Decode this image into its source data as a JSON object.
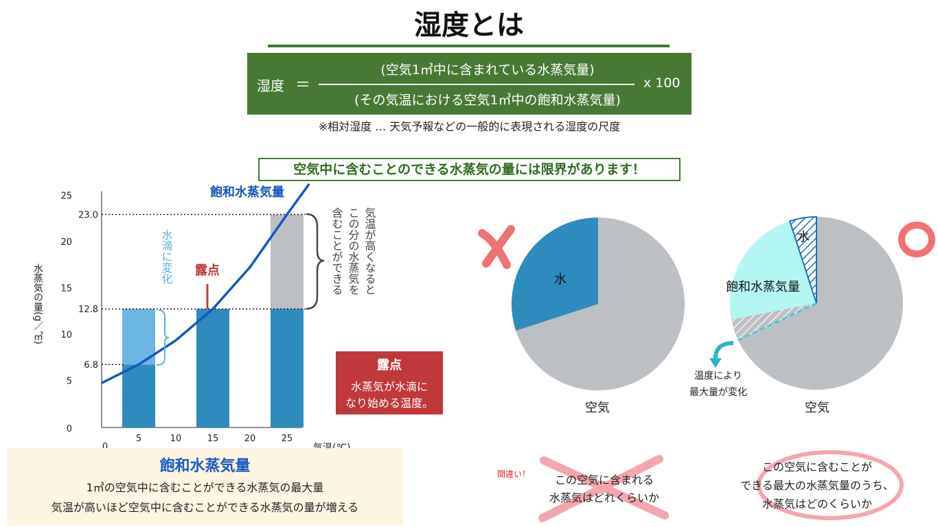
{
  "title": "湿度とは",
  "formula": {
    "lhs": "湿度",
    "eq": "＝",
    "numerator": "(空気1㎥中に含まれている水蒸気量)",
    "denominator": "(その気温における空気1㎥中の飽和水蒸気量)",
    "multiplier": "x 100",
    "note": "※相対湿度 … 天気予報などの一般的に表現される湿度の尺度"
  },
  "banner": "空気中に含むことのできる水蒸気の量には限界があります！",
  "colors": {
    "green": "#467a32",
    "blue_bar": "#2e8bbd",
    "light_blue_bar": "#6cb6e3",
    "gray_bar": "#bcbfc4",
    "curve": "#1456c0",
    "red": "#c0383a",
    "cyan": "#b3f7f5"
  },
  "chart_data": {
    "type": "bar",
    "x_ticks": [
      "0",
      "5",
      "10",
      "15",
      "20",
      "25"
    ],
    "y_ticks": [
      "0",
      "5",
      "10",
      "15",
      "20",
      "25"
    ],
    "xlabel": "気温(℃)",
    "ylabel": "水蒸気の量(g／㎥)",
    "xlim": [
      0,
      30
    ],
    "ylim": [
      0,
      25
    ],
    "bars": [
      {
        "x": 5,
        "water_vapor": 6.8,
        "condensed": 6.0
      },
      {
        "x": 15,
        "water_vapor": 12.8,
        "condensed": 0
      },
      {
        "x": 25,
        "water_vapor": 12.8,
        "extra_capacity": 10.2
      }
    ],
    "curve_points": [
      [
        0,
        4.8
      ],
      [
        5,
        6.8
      ],
      [
        10,
        9.4
      ],
      [
        15,
        12.8
      ],
      [
        20,
        17.3
      ],
      [
        25,
        23.0
      ],
      [
        28,
        26.3
      ]
    ],
    "reference_lines": [
      "6.8",
      "12.8",
      "23.0"
    ],
    "curve_label": "飽和水蒸気量",
    "annotation_condense": "水滴に変化",
    "annotation_dewpoint": "露点",
    "annotation_capacity": [
      "気温が高くなると",
      "この分の水蒸気を",
      "含むことができる"
    ]
  },
  "dew_box": {
    "title": "露点",
    "line1": "水蒸気が水滴に",
    "line2": "なり始める温度。"
  },
  "sat_box": {
    "title": "飽和水蒸気量",
    "line1": "1㎥の空気中に含むことができる水蒸気の最大量",
    "line2": "気温が高いほど空気中に含むことができる水蒸気の量が増える"
  },
  "pie_wrong": {
    "mark": "×",
    "water_label": "水",
    "water_fraction": 0.3,
    "air_label": "空気",
    "note": "間違い！",
    "caption_l1": "この空気に含まれる",
    "caption_l2": "水蒸気はどれくらいか"
  },
  "pie_right": {
    "mark": "○",
    "water_label": "水",
    "water_fraction": 0.05,
    "saturation_label": "飽和水蒸気量",
    "saturation_fraction": 0.32,
    "air_label": "空気",
    "arrow_label_l1": "温度により",
    "arrow_label_l2": "最大量が変化",
    "caption_l1": "この空気に含むことが",
    "caption_l2": "できる最大の水蒸気量のうち、",
    "caption_l3": "水蒸気はどのくらいか"
  }
}
